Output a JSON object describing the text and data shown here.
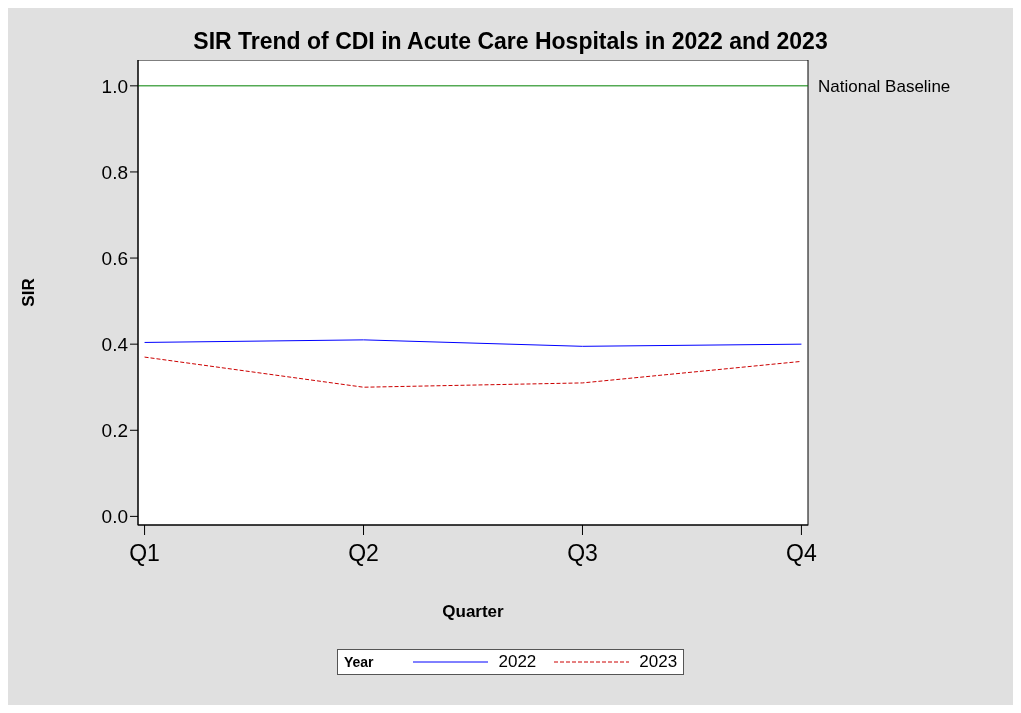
{
  "chart_data": {
    "type": "line",
    "title": "SIR Trend of CDI in Acute Care Hospitals in 2022 and 2023",
    "xlabel": "Quarter",
    "ylabel": "SIR",
    "legend_title": "Year",
    "categories": [
      "Q1",
      "Q2",
      "Q3",
      "Q4"
    ],
    "series": [
      {
        "name": "2022",
        "color": "#0000ff",
        "line_style": "solid",
        "values": [
          0.404,
          0.41,
          0.395,
          0.4
        ]
      },
      {
        "name": "2023",
        "color": "#cc0000",
        "line_style": "dashed",
        "values": [
          0.37,
          0.3,
          0.31,
          0.36
        ]
      }
    ],
    "ylim": [
      -0.02,
      1.06
    ],
    "yticks": [
      {
        "value": 0,
        "label": "0.0"
      },
      {
        "value": 0.2,
        "label": "0.2"
      },
      {
        "value": 0.4,
        "label": "0.4"
      },
      {
        "value": 0.6,
        "label": "0.6"
      },
      {
        "value": 0.8,
        "label": "0.8"
      },
      {
        "value": 1,
        "label": "1.0"
      }
    ],
    "ref_lines": [
      {
        "axis": "y",
        "value": 1,
        "label": "National Baseline",
        "color": "#008000"
      }
    ],
    "legend": "bottom",
    "marker": "none"
  }
}
